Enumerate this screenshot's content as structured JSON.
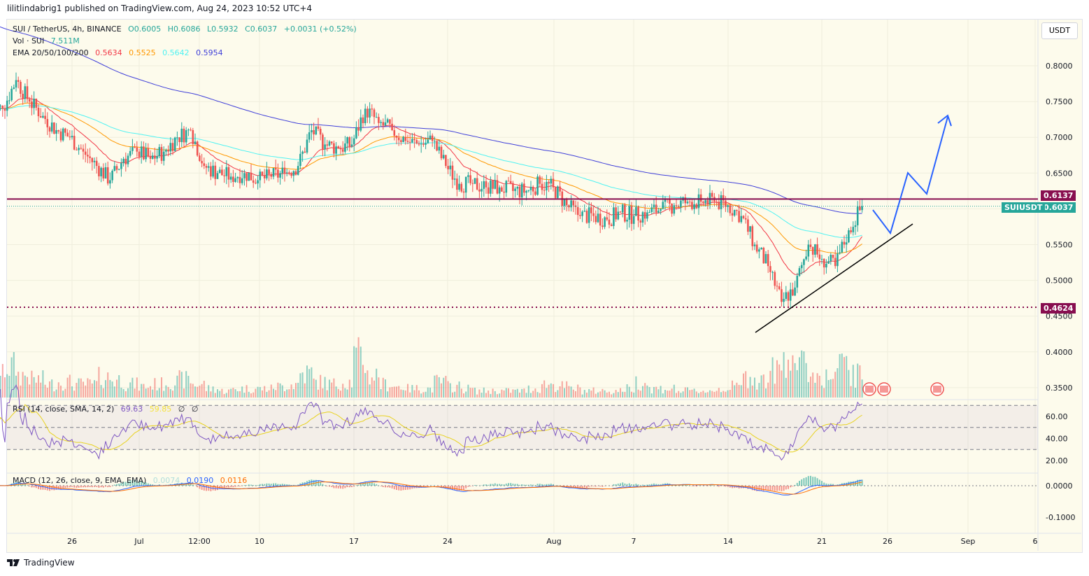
{
  "header": {
    "published": "lilitlindabrig1 published on TradingView.com, Aug 24, 2023 10:52 UTC+4"
  },
  "legend": {
    "symbol": "SUI / TetherUS, 4h, BINANCE",
    "open": "O0.6005",
    "high": "H0.6086",
    "low": "L0.5932",
    "close": "C0.6037",
    "change": "+0.0031 (+0.52%)",
    "vol_label": "Vol · SUI",
    "vol_value": "7.511M",
    "ema_label": "EMA 20/50/100/200",
    "ema20": "0.5634",
    "ema50": "0.5525",
    "ema100": "0.5642",
    "ema200": "0.5954",
    "rsi_label": "RSI (14, close, SMA, 14, 2)",
    "rsi": "69.63",
    "rsi_sma": "59.85",
    "rsi_x1": "∅",
    "rsi_x2": "∅",
    "macd_label": "MACD (12, 26, close, 9, EMA, EMA)",
    "macd_hist": "0.0074",
    "macd": "0.0190",
    "macd_signal": "0.0116"
  },
  "currency_button": "USDT",
  "price_tags": {
    "resistance": "0.6137",
    "symbol": "SUIUSDT",
    "last": "0.6037",
    "support": "0.4624"
  },
  "footer": {
    "brand": "TradingView"
  },
  "colors": {
    "up": "#26a69a",
    "down": "#ef5350",
    "ema20": "#f23645",
    "ema50": "#ff9800",
    "ema100": "#4ff2f2",
    "ema200": "#3f3fd9",
    "rsi": "#7e57c2",
    "rsi_sma": "#f5e33b",
    "level": "#880e4f",
    "projection": "#2962ff"
  },
  "icons": [
    "us-flag-event-icon",
    "tradingview-logo-icon"
  ],
  "chart_data": {
    "type": "candlestick",
    "price_axis": {
      "ticks": [
        "0.8000",
        "0.7500",
        "0.7000",
        "0.6500",
        "0.5500",
        "0.5000",
        "0.4500",
        "0.4000",
        "0.3500"
      ],
      "range": [
        0.33,
        0.82
      ]
    },
    "time_axis": {
      "ticks": [
        "26",
        "Jul",
        "12:00",
        "10",
        "17",
        "24",
        "Aug",
        "7",
        "14",
        "21",
        "26",
        "Sep",
        "6"
      ]
    },
    "rsi_axis": {
      "ticks": [
        "60.00",
        "40.00",
        "20.00"
      ],
      "bands": [
        70,
        50,
        30
      ]
    },
    "macd_axis": {
      "ticks": [
        "0.0000",
        "-0.1000"
      ]
    },
    "levels": {
      "resistance": 0.6137,
      "support": 0.4624
    },
    "daily_close": {
      "start": "Jun 21",
      "values": [
        0.74,
        0.78,
        0.75,
        0.73,
        0.71,
        0.7,
        0.68,
        0.66,
        0.64,
        0.67,
        0.68,
        0.67,
        0.68,
        0.7,
        0.71,
        0.66,
        0.65,
        0.645,
        0.65,
        0.64,
        0.645,
        0.65,
        0.66,
        0.71,
        0.69,
        0.685,
        0.69,
        0.74,
        0.72,
        0.71,
        0.695,
        0.69,
        0.695,
        0.66,
        0.635,
        0.635,
        0.63,
        0.63,
        0.625,
        0.625,
        0.635,
        0.63,
        0.605,
        0.59,
        0.59,
        0.585,
        0.595,
        0.59,
        0.595,
        0.6,
        0.605,
        0.61,
        0.61,
        0.61,
        0.605,
        0.59,
        0.55,
        0.52,
        0.47,
        0.49,
        0.55,
        0.53,
        0.52,
        0.57,
        0.6037
      ]
    },
    "daily_volume_rel": [
      0.5,
      0.7,
      0.5,
      0.4,
      0.3,
      0.35,
      0.3,
      0.3,
      0.45,
      0.4,
      0.3,
      0.25,
      0.3,
      0.35,
      0.4,
      0.3,
      0.2,
      0.15,
      0.2,
      0.2,
      0.2,
      0.25,
      0.3,
      0.55,
      0.35,
      0.3,
      0.35,
      0.9,
      0.5,
      0.3,
      0.25,
      0.2,
      0.2,
      0.35,
      0.25,
      0.2,
      0.15,
      0.15,
      0.15,
      0.15,
      0.2,
      0.3,
      0.25,
      0.2,
      0.15,
      0.15,
      0.15,
      0.2,
      0.35,
      0.2,
      0.2,
      0.15,
      0.15,
      0.15,
      0.2,
      0.25,
      0.45,
      0.4,
      0.6,
      1.0,
      0.7,
      0.5,
      0.45,
      0.7,
      0.5
    ]
  }
}
